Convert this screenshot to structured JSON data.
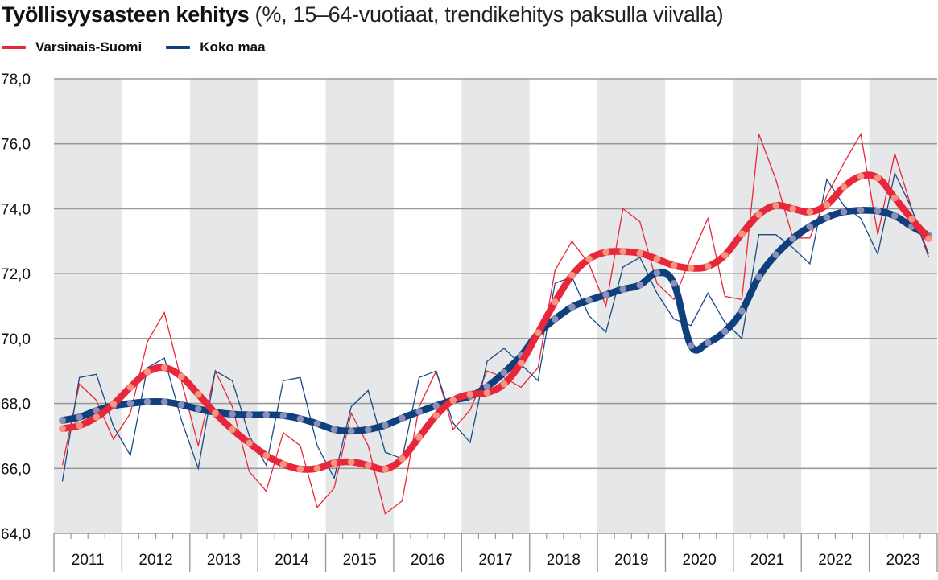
{
  "chart_data": {
    "type": "line",
    "title": "Työllisyysasteen kehitys",
    "subtitle": "(%, 15–64-vuotiaat, trendikehitys paksulla viivalla)",
    "xlabel": "",
    "ylabel": "",
    "ylim": [
      64,
      78
    ],
    "yticks": [
      "64,0",
      "66,0",
      "68,0",
      "70,0",
      "72,0",
      "74,0",
      "76,0",
      "78,0"
    ],
    "ytick_values": [
      64,
      66,
      68,
      70,
      72,
      74,
      76,
      78
    ],
    "categories": [
      "2011",
      "2012",
      "2013",
      "2014",
      "2015",
      "2016",
      "2017",
      "2018",
      "2019",
      "2020",
      "2021",
      "2022",
      "2023"
    ],
    "x_unit": "quarter",
    "points_per_category": 4,
    "grid": true,
    "shaded_alternate_years": true,
    "legend_position": "top-left",
    "legend": [
      {
        "name": "Varsinais-Suomi",
        "color": "#e8283a"
      },
      {
        "name": "Koko maa",
        "color": "#0f3f7c"
      }
    ],
    "series": [
      {
        "name": "Varsinais-Suomi",
        "kind": "quarterly",
        "color": "#e8283a",
        "values": [
          66.1,
          68.6,
          68.1,
          66.9,
          67.7,
          69.9,
          70.8,
          68.7,
          66.7,
          69.0,
          67.9,
          65.9,
          65.3,
          67.1,
          66.7,
          64.8,
          65.4,
          67.7,
          66.7,
          64.6,
          65.0,
          67.9,
          69.0,
          67.2,
          67.8,
          69.0,
          68.8,
          68.5,
          69.1,
          72.1,
          73.0,
          72.3,
          71.0,
          74.0,
          73.6,
          71.7,
          71.2,
          72.5,
          73.7,
          71.3,
          71.2,
          76.3,
          74.9,
          73.1,
          73.1,
          74.4,
          75.4,
          76.3,
          73.2,
          75.7,
          74.0,
          72.6
        ]
      },
      {
        "name": "Koko maa",
        "kind": "quarterly",
        "color": "#1a4a86",
        "values": [
          65.6,
          68.8,
          68.9,
          67.3,
          66.4,
          69.1,
          69.4,
          67.5,
          66.0,
          69.0,
          68.7,
          67.0,
          66.1,
          68.7,
          68.8,
          66.7,
          65.7,
          67.9,
          68.4,
          66.5,
          66.3,
          68.8,
          69.0,
          67.4,
          66.8,
          69.3,
          69.7,
          69.2,
          68.7,
          71.7,
          71.9,
          70.7,
          70.2,
          72.2,
          72.5,
          71.4,
          70.6,
          70.4,
          71.4,
          70.5,
          70.0,
          73.2,
          73.2,
          72.8,
          72.3,
          74.9,
          74.1,
          73.7,
          72.6,
          75.1,
          74.0,
          72.5
        ]
      },
      {
        "name": "Koko maa (trendi)",
        "kind": "trend",
        "color": "#0f3f7c",
        "dot_color": "#8b90b9",
        "values": [
          67.48,
          67.58,
          67.78,
          67.93,
          68.0,
          68.05,
          68.05,
          67.96,
          67.83,
          67.73,
          67.67,
          67.65,
          67.65,
          67.63,
          67.53,
          67.38,
          67.2,
          67.15,
          67.2,
          67.33,
          67.55,
          67.75,
          67.93,
          68.1,
          68.22,
          68.52,
          68.95,
          69.47,
          70.15,
          70.6,
          70.97,
          71.18,
          71.35,
          71.52,
          71.65,
          72.02,
          71.7,
          69.78,
          69.87,
          70.22,
          70.85,
          71.9,
          72.58,
          73.08,
          73.45,
          73.73,
          73.9,
          73.95,
          73.93,
          73.78,
          73.45,
          73.18
        ]
      },
      {
        "name": "Varsinais-Suomi (trendi)",
        "kind": "trend",
        "color": "#e8283a",
        "dot_color": "#f59581",
        "values": [
          67.23,
          67.32,
          67.58,
          67.98,
          68.5,
          68.97,
          69.1,
          68.83,
          68.28,
          67.7,
          67.2,
          66.78,
          66.4,
          66.13,
          65.98,
          66.0,
          66.17,
          66.2,
          66.1,
          65.98,
          66.3,
          66.96,
          67.63,
          68.1,
          68.28,
          68.33,
          68.6,
          69.25,
          70.18,
          71.13,
          71.95,
          72.45,
          72.66,
          72.68,
          72.63,
          72.45,
          72.25,
          72.17,
          72.22,
          72.57,
          73.23,
          73.82,
          74.1,
          74.0,
          73.9,
          74.12,
          74.67,
          75.0,
          74.95,
          74.33,
          73.68,
          73.08
        ]
      }
    ]
  },
  "colors": {
    "shade": "#e6e7e9",
    "grid": "#9a9a9a",
    "axis": "#9a9a9a"
  }
}
